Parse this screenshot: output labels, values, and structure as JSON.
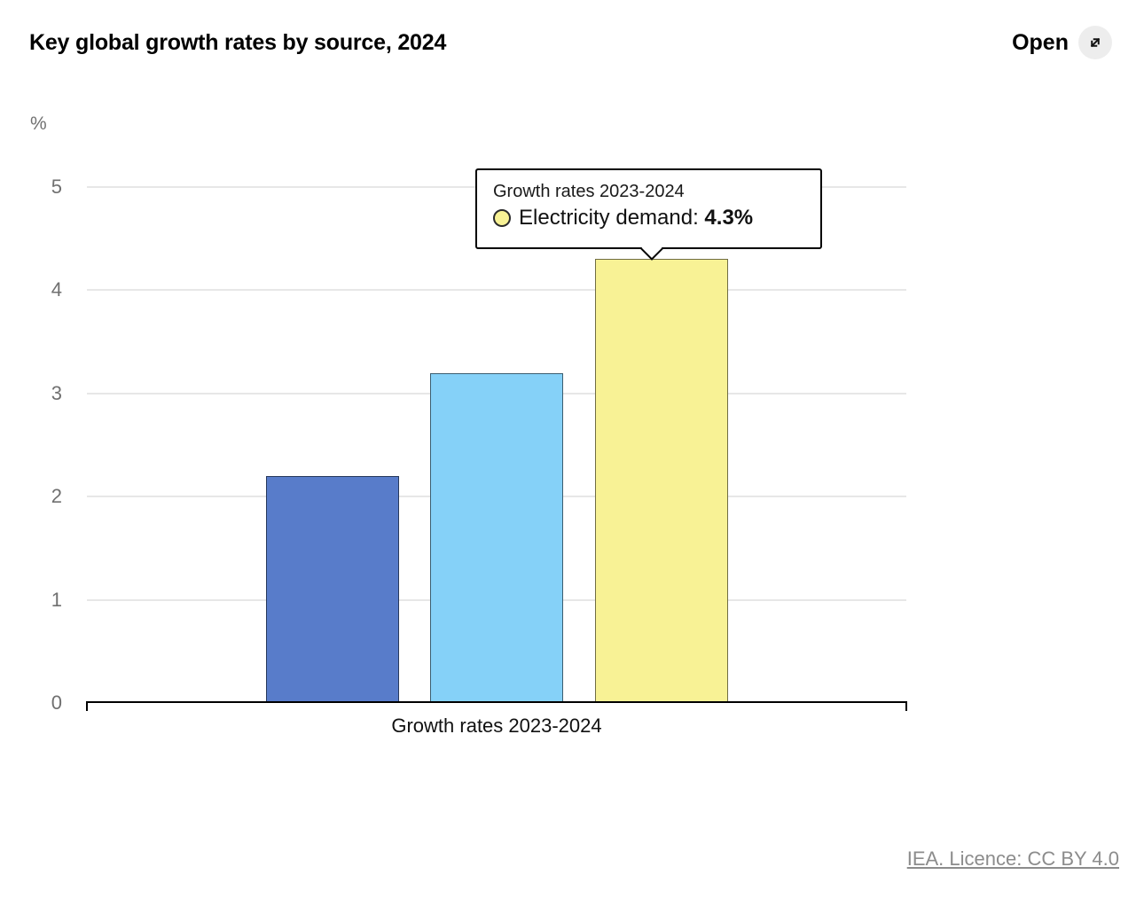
{
  "header": {
    "title": "Key global growth rates by source, 2024",
    "open_label": "Open",
    "open_icon": "expand-diagonal-arrow",
    "open_circle_color": "#ededed"
  },
  "chart_data": {
    "type": "bar",
    "title": "Key global growth rates by source, 2024",
    "ylabel": "%",
    "xlabel": "",
    "ylim": [
      0,
      5
    ],
    "yticks": [
      0,
      1,
      2,
      3,
      4,
      5
    ],
    "grid": true,
    "legend_position": "none",
    "categories": [
      "Growth rates 2023-2024"
    ],
    "series": [
      {
        "name": "",
        "value": 2.2,
        "color": "#587CCA"
      },
      {
        "name": "",
        "value": 3.2,
        "color": "#85D1F8"
      },
      {
        "name": "Electricity demand",
        "value": 4.3,
        "color": "#F8F295"
      }
    ]
  },
  "tooltip": {
    "title": "Growth rates 2023-2024",
    "series_label": "Electricity demand:",
    "value_text": "4.3%",
    "marker_color": "#F8F295"
  },
  "footer": {
    "licence": "IEA. Licence: CC BY 4.0"
  }
}
